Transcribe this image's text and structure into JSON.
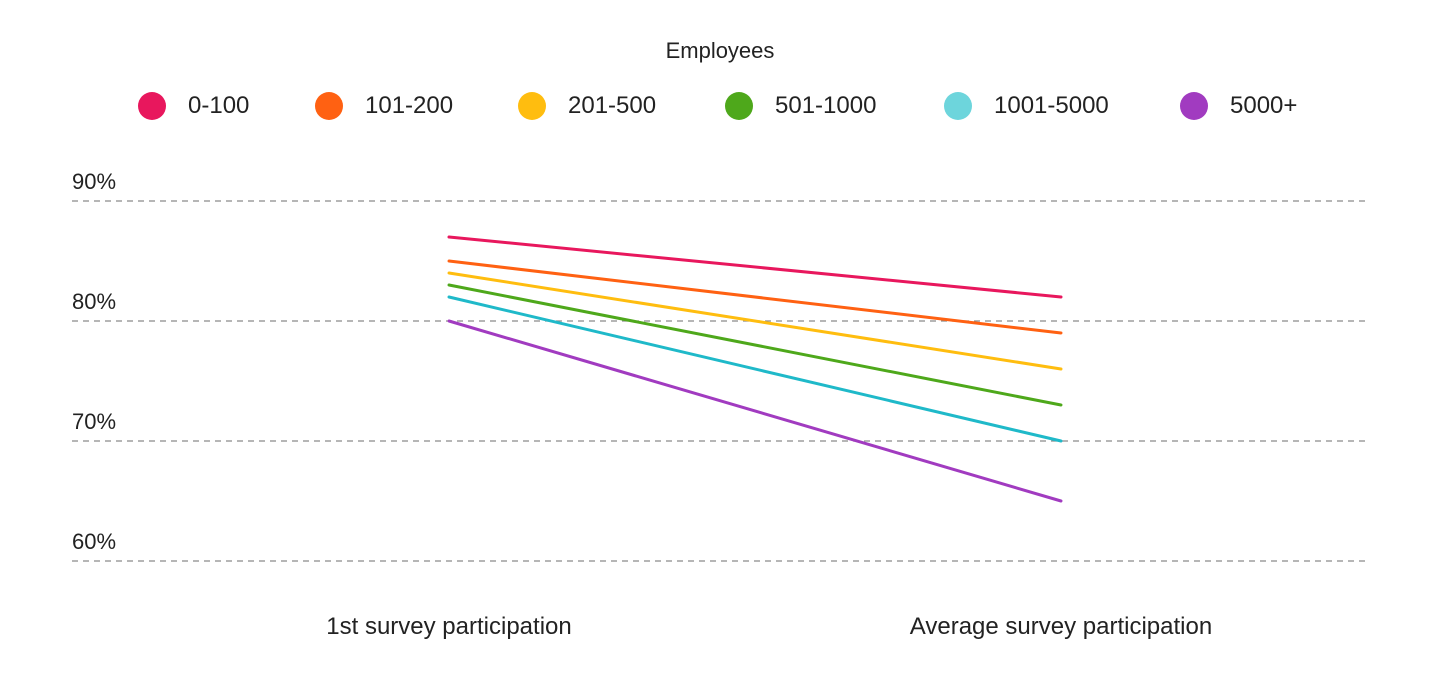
{
  "chart_data": {
    "type": "line",
    "legend_title": "Employees",
    "categories": [
      "1st survey participation",
      "Average survey participation"
    ],
    "y_ticks": [
      "90%",
      "80%",
      "70%",
      "60%"
    ],
    "ylim": [
      60,
      90
    ],
    "grid": "dashed-horizontal",
    "legend_position": "top",
    "series": [
      {
        "name": "0-100",
        "values": [
          87,
          82
        ],
        "color": "#E8175D"
      },
      {
        "name": "101-200",
        "values": [
          85,
          79
        ],
        "color": "#FF6112"
      },
      {
        "name": "201-500",
        "values": [
          84,
          76
        ],
        "color": "#FFBD0F"
      },
      {
        "name": "501-1000",
        "values": [
          83,
          73
        ],
        "color": "#4EA81B"
      },
      {
        "name": "1001-5000",
        "values": [
          82,
          70
        ],
        "color": "#1FB9C9",
        "legend_color": "#6DD5DC"
      },
      {
        "name": "5000+",
        "values": [
          80,
          65
        ],
        "color": "#A13BC0"
      }
    ]
  }
}
